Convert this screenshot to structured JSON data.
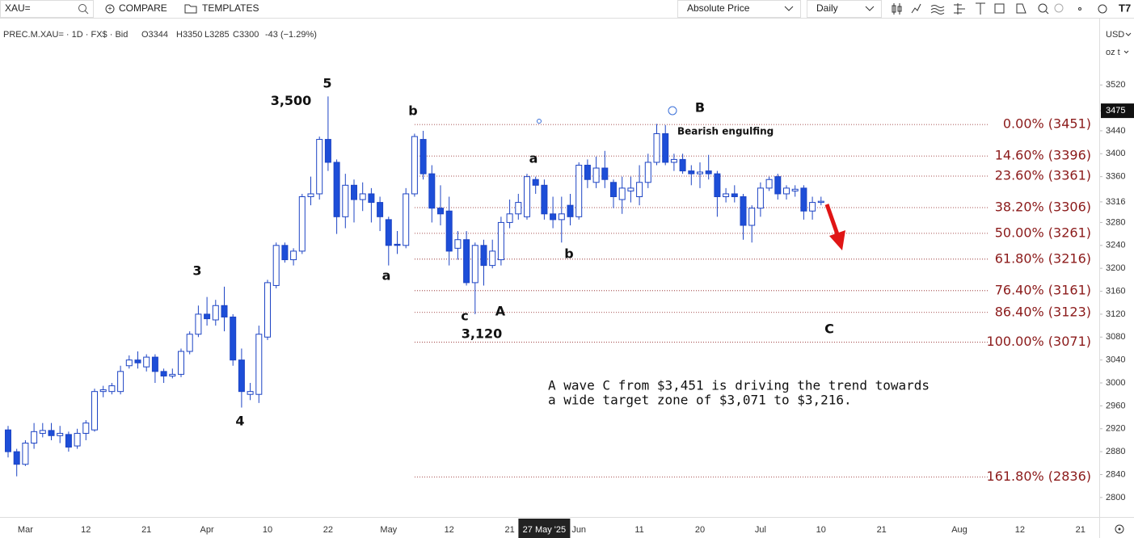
{
  "toolbar": {
    "symbol": "XAU=",
    "compare": "COMPARE",
    "templates": "TEMPLATES",
    "price_mode": "Absolute Price",
    "interval": "Daily"
  },
  "chart_data": {
    "type": "candlestick",
    "legend_title": "PREC.M.XAU= · 1D · FX$ · Bid",
    "ohlc_readout": [
      "O3344",
      "H3350",
      "L3285",
      "C3300",
      "-43 (−1.29%)"
    ],
    "currency": "USD",
    "unit": "oz t",
    "categories": [
      null,
      null,
      "Mar",
      null,
      null,
      null,
      null,
      null,
      null,
      "12",
      null,
      null,
      null,
      null,
      null,
      null,
      "21",
      null,
      null,
      null,
      null,
      null,
      null,
      "Apr",
      null,
      null,
      null,
      null,
      null,
      null,
      "10",
      null,
      null,
      null,
      null,
      null,
      null,
      "22",
      null,
      null,
      null,
      null,
      null,
      null,
      "May",
      null,
      null,
      null,
      null,
      null,
      null,
      "12",
      null,
      null,
      null,
      null,
      null,
      null,
      "21",
      null,
      null,
      null,
      "27 May '25",
      null,
      null,
      null,
      "Jun",
      null,
      null,
      null,
      null,
      null,
      null,
      "11",
      null,
      null,
      null,
      null,
      null,
      null,
      "20",
      null,
      null,
      null,
      null,
      null,
      null,
      "Jul",
      null,
      null,
      null,
      null,
      null,
      null,
      "10",
      null,
      null,
      null,
      null,
      null,
      null,
      "21",
      null,
      null,
      null,
      null,
      null,
      null,
      null,
      null,
      "Aug",
      null,
      null,
      null,
      null,
      null,
      null,
      "12",
      null,
      null,
      null,
      null,
      null,
      null,
      "21"
    ],
    "crosshair_category_index": 62,
    "open": [
      2918,
      2880,
      2858,
      2895,
      2912,
      2917,
      2908,
      2910,
      2890,
      2912,
      2918,
      2985,
      2985,
      2985,
      3030,
      3040,
      3028,
      3045,
      3020,
      3012,
      3015,
      3055,
      3085,
      3120,
      3110,
      3135,
      3115,
      3040,
      2980,
      2980,
      3080,
      3170,
      3240,
      3215,
      3230,
      3325,
      3330,
      3425,
      3385,
      3290,
      3345,
      3320,
      3330,
      3315,
      3285,
      3242,
      3240,
      3330,
      3425,
      3365,
      3305,
      3300,
      3235,
      3250,
      3175,
      3240,
      3205,
      3215,
      3280,
      3295,
      3290,
      3355,
      3345,
      3295,
      3285,
      3310,
      3290,
      3380,
      3350,
      3375,
      3350,
      3320,
      3335,
      3325,
      3350,
      3385,
      3435,
      3385,
      3390,
      3370,
      3365,
      3370,
      3365,
      3325,
      3330,
      3325,
      3275,
      3305,
      3340,
      3360,
      3330,
      3335,
      3340,
      3300,
      3315,
      null,
      null,
      null,
      null,
      null,
      null,
      null,
      null,
      null,
      null,
      null,
      null,
      null,
      null,
      null,
      null,
      null,
      null,
      null,
      null,
      null,
      null,
      null,
      null,
      null,
      null,
      null,
      null,
      null,
      null
    ],
    "high": [
      2925,
      2885,
      2900,
      2930,
      2930,
      2930,
      2925,
      2915,
      2920,
      2935,
      2990,
      2995,
      3000,
      3030,
      3048,
      3055,
      3050,
      3050,
      3025,
      3025,
      3060,
      3090,
      3135,
      3150,
      3145,
      3168,
      3120,
      3060,
      3000,
      3100,
      3180,
      3245,
      3245,
      3235,
      3330,
      3360,
      3430,
      3500,
      3390,
      3365,
      3355,
      3350,
      3340,
      3325,
      3290,
      3265,
      3340,
      3435,
      3440,
      3380,
      3345,
      3325,
      3265,
      3265,
      3245,
      3250,
      3250,
      3290,
      3320,
      3330,
      3365,
      3360,
      3355,
      3325,
      3325,
      3330,
      3385,
      3390,
      3395,
      3405,
      3355,
      3360,
      3360,
      3380,
      3400,
      3452,
      3450,
      3400,
      3400,
      3380,
      3385,
      3398,
      3370,
      3340,
      3345,
      3330,
      3310,
      3350,
      3360,
      3365,
      3345,
      3345,
      3345,
      3325,
      3325,
      null,
      null,
      null,
      null,
      null,
      null,
      null,
      null,
      null,
      null,
      null,
      null,
      null,
      null,
      null,
      null,
      null,
      null,
      null,
      null,
      null,
      null,
      null,
      null,
      null,
      null,
      null,
      null,
      null,
      null
    ],
    "low": [
      2870,
      2837,
      2855,
      2885,
      2905,
      2900,
      2895,
      2880,
      2885,
      2900,
      2915,
      2975,
      2980,
      2980,
      3025,
      3025,
      3020,
      3000,
      3000,
      3008,
      3010,
      3050,
      3080,
      3100,
      3100,
      3090,
      3030,
      2957,
      2970,
      2965,
      3075,
      3165,
      3210,
      3205,
      3225,
      3310,
      3320,
      3370,
      3260,
      3270,
      3280,
      3300,
      3280,
      3265,
      3205,
      3225,
      3235,
      3325,
      3355,
      3280,
      3275,
      3205,
      3215,
      3170,
      3120,
      3170,
      3200,
      3205,
      3270,
      3285,
      3285,
      3330,
      3285,
      3270,
      3245,
      3275,
      3285,
      3340,
      3340,
      3340,
      3305,
      3295,
      3315,
      3310,
      3340,
      3380,
      3380,
      3370,
      3365,
      3345,
      3340,
      3355,
      3290,
      3315,
      3315,
      3250,
      3245,
      3290,
      3335,
      3320,
      3320,
      3325,
      3285,
      3285,
      3310,
      null,
      null,
      null,
      null,
      null,
      null,
      null,
      null,
      null,
      null,
      null,
      null,
      null,
      null,
      null,
      null,
      null,
      null,
      null,
      null,
      null,
      null,
      null,
      null,
      null,
      null,
      null,
      null,
      null,
      null
    ],
    "close": [
      2880,
      2858,
      2895,
      2915,
      2917,
      2908,
      2912,
      2888,
      2912,
      2930,
      2985,
      2988,
      2995,
      3020,
      3040,
      3035,
      3045,
      3020,
      3012,
      3015,
      3055,
      3085,
      3120,
      3112,
      3135,
      3115,
      3040,
      2985,
      2985,
      3085,
      3175,
      3240,
      3215,
      3230,
      3325,
      3330,
      3425,
      3385,
      3290,
      3345,
      3320,
      3330,
      3315,
      3290,
      3240,
      3240,
      3330,
      3430,
      3365,
      3305,
      3295,
      3230,
      3250,
      3175,
      3240,
      3205,
      3230,
      3280,
      3295,
      3315,
      3360,
      3345,
      3295,
      3285,
      3295,
      3290,
      3380,
      3355,
      3375,
      3355,
      3325,
      3340,
      3340,
      3350,
      3385,
      3435,
      3385,
      3390,
      3370,
      3365,
      3368,
      3365,
      3325,
      3330,
      3325,
      3275,
      3305,
      3340,
      3355,
      3330,
      3340,
      3338,
      3300,
      3315,
      3317,
      null,
      null,
      null,
      null,
      null,
      null,
      null,
      null,
      null,
      null,
      null,
      null,
      null,
      null,
      null,
      null,
      null,
      null,
      null,
      null,
      null,
      null,
      null,
      null,
      null,
      null,
      null,
      null,
      null,
      null
    ],
    "up_color": "#ffffff",
    "down_color": "#1d4ed8",
    "edge_color": "#1d44c4",
    "ylim": [
      2766,
      3626
    ],
    "yticks": [
      2800,
      2840,
      2880,
      2920,
      2960,
      3000,
      3040,
      3080,
      3120,
      3160,
      3200,
      3240,
      3280,
      3316,
      3360,
      3400,
      3440,
      3475,
      3520
    ],
    "last_price": 3475,
    "fib_color": "#8b1a1a",
    "fib_levels": [
      {
        "value": 3451,
        "label": "0.00% (3451)"
      },
      {
        "value": 3396,
        "label": "14.60% (3396)"
      },
      {
        "value": 3361,
        "label": "23.60% (3361)"
      },
      {
        "value": 3306,
        "label": "38.20% (3306)"
      },
      {
        "value": 3261,
        "label": "50.00% (3261)"
      },
      {
        "value": 3216,
        "label": "61.80% (3216)"
      },
      {
        "value": 3161,
        "label": "76.40% (3161)"
      },
      {
        "value": 3123,
        "label": "86.40% (3123)"
      },
      {
        "value": 3071,
        "label": "100.00% (3071)"
      },
      {
        "value": 2836,
        "label": "161.80% (2836)"
      }
    ],
    "annotations": [
      "5",
      {
        "value": 3500,
        "label": "3,500"
      },
      "3",
      "4",
      "b",
      "a",
      "a",
      "b",
      "c",
      {
        "value": 3120,
        "label": "3,120"
      },
      "A",
      "B",
      "C",
      "Bearish engulfing"
    ],
    "note_lines": [
      "A wave C from $3,451 is driving the trend towards",
      "a wide target zone of $3,071 to $3,216."
    ]
  }
}
